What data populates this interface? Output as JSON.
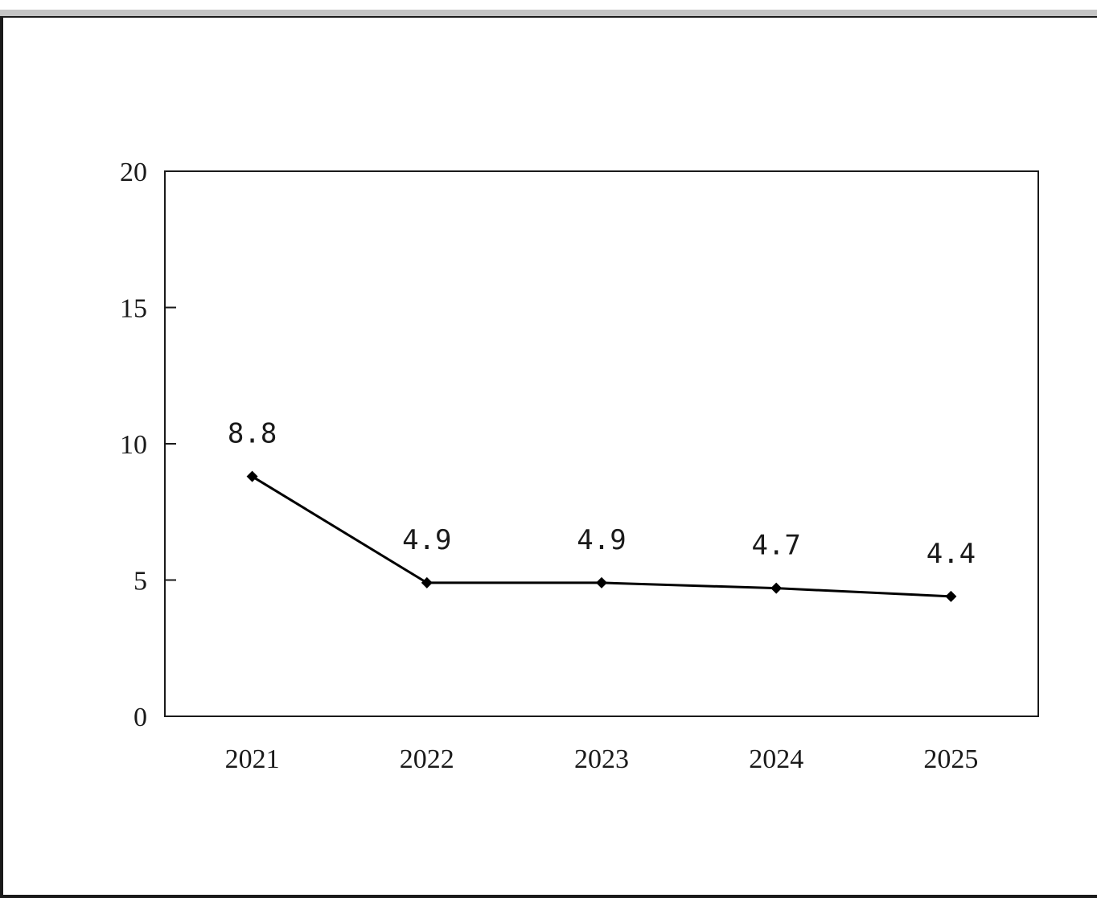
{
  "chart_data": {
    "type": "line",
    "title": "",
    "xlabel": "",
    "ylabel": "",
    "categories": [
      "2021",
      "2022",
      "2023",
      "2024",
      "2025"
    ],
    "series": [
      {
        "values": [
          8.8,
          4.9,
          4.9,
          4.7,
          4.4
        ],
        "data_labels": [
          "8.8",
          "4.9",
          "4.9",
          "4.7",
          "4.4"
        ],
        "color": "#000000",
        "marker": "diamond"
      }
    ],
    "ylim": [
      0,
      20
    ],
    "yticks": [
      0,
      5,
      10,
      15,
      20
    ],
    "ytick_labels": [
      "0",
      "5",
      "10",
      "15",
      "20"
    ],
    "grid": false,
    "legend": "none"
  }
}
